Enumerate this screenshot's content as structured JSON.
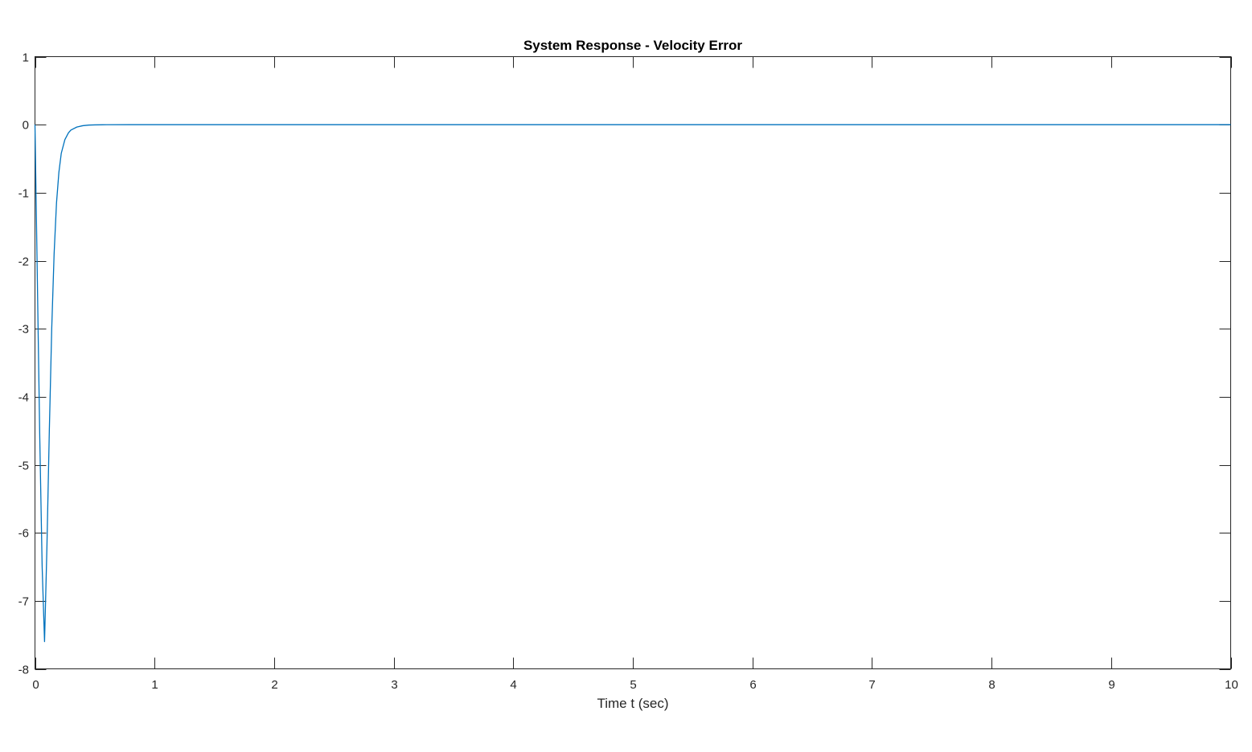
{
  "chart_data": {
    "type": "line",
    "title": "System Response - Velocity Error",
    "xlabel": "Time t (sec)",
    "ylabel": "",
    "xlim": [
      0,
      10
    ],
    "ylim": [
      -8,
      1
    ],
    "xticks": [
      0,
      1,
      2,
      3,
      4,
      5,
      6,
      7,
      8,
      9,
      10
    ],
    "yticks": [
      1,
      0,
      -1,
      -2,
      -3,
      -4,
      -5,
      -6,
      -7,
      -8
    ],
    "grid": false,
    "legend": "none",
    "series_color": "#0072BD",
    "series": [
      {
        "x": [
          0,
          0.02,
          0.04,
          0.06,
          0.08,
          0.1,
          0.12,
          0.14,
          0.16,
          0.18,
          0.2,
          0.22,
          0.25,
          0.28,
          0.3,
          0.35,
          0.4,
          0.45,
          0.5,
          0.6,
          0.8,
          1,
          2,
          3,
          4,
          5,
          6,
          7,
          8,
          9,
          10
        ],
        "y": [
          0,
          -2.3,
          -4.6,
          -6.5,
          -7.6,
          -6.2,
          -4.5,
          -3.0,
          -1.9,
          -1.15,
          -0.7,
          -0.42,
          -0.22,
          -0.12,
          -0.08,
          -0.035,
          -0.015,
          -0.006,
          -0.003,
          -0.001,
          0,
          0,
          0,
          0,
          0,
          0,
          0,
          0,
          0,
          0,
          0
        ]
      }
    ]
  }
}
